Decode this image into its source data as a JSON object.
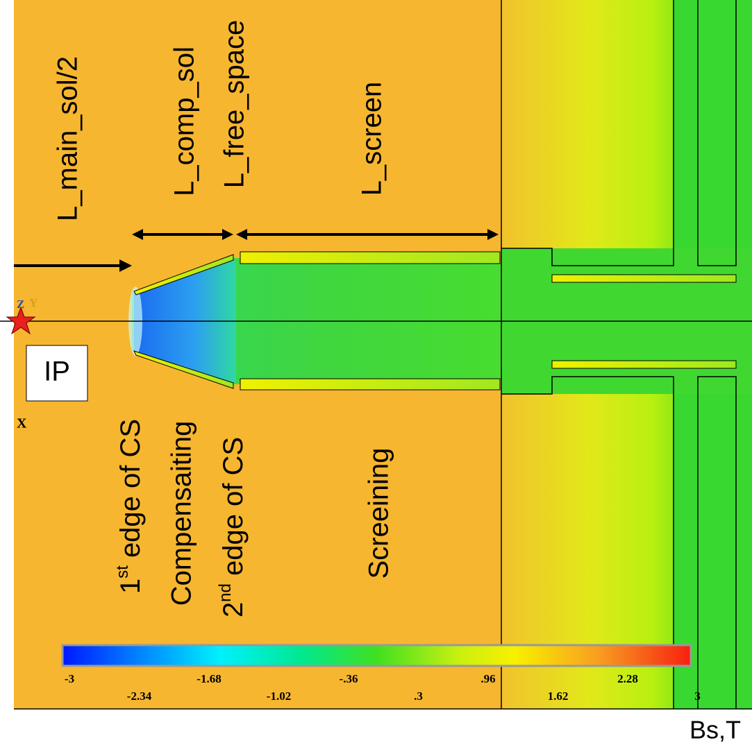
{
  "labels": {
    "main_sol": "L_main_sol/2",
    "comp_sol": "L_comp_sol",
    "free_space": "L_free_space",
    "screen": "L_screen",
    "edge1": {
      "main": "1",
      "sup": "st",
      "rest": " edge of CS"
    },
    "compensating": "Compensaiting",
    "edge2": {
      "main": "2",
      "sup": "nd",
      "rest": " edge of CS"
    },
    "screening": "Screeining",
    "ip": "IP"
  },
  "axes_marker": {
    "z": "Z",
    "y": "Y",
    "x": "X"
  },
  "colorbar": {
    "ticks": [
      "-3",
      "-2.34",
      "-1.68",
      "-1.02",
      "-.36",
      ".3",
      ".96",
      "1.62",
      "2.28",
      "3"
    ],
    "unit": "Bs,T"
  }
}
